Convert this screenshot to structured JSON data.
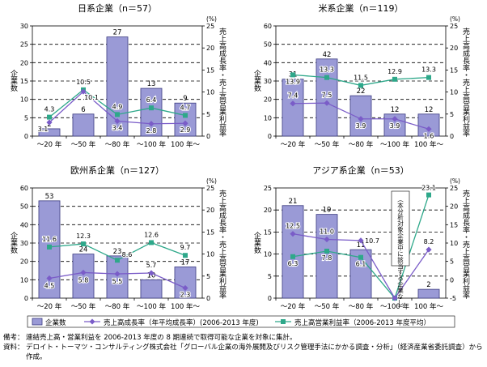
{
  "legend": {
    "companies": "企業数",
    "sales_growth": "売上高成長率（年平均成長率）(2006-2013 年度)",
    "op_margin": "売上高営業利益率（2006-2013 年度平均）"
  },
  "footnotes": {
    "note_key": "備考：",
    "note_text": "連結売上高・営業利益を 2006-2013 年度の 8 期連続で取得可能な企業を対象に集計。",
    "source_key": "資料：",
    "source_text": "デロイト・トーマツ・コンサルティング株式会社「グローバル企業の海外展開及びリスク管理手法にかかる調査・分析」（経済産業省委託調査）から",
    "source_text2": "作成。"
  },
  "colors": {
    "bar": "#9a9ad6",
    "bar_stroke": "#3a3a80",
    "growth": "#7a5cc8",
    "margin": "#2ea88a"
  },
  "chart_data": [
    {
      "type": "bar",
      "title": "日系企業（n＝57）",
      "categories": [
        "～20 年",
        "～50 年",
        "～80 年",
        "～100 年",
        "100 年～"
      ],
      "ylabel_left": "企業数",
      "ylabel_right": "売上高成長率・売上高営業利益率",
      "right_unit": "(%)",
      "ylim_left": [
        0,
        30
      ],
      "left_ticks": [
        0,
        5,
        10,
        15,
        20,
        25,
        30
      ],
      "ylim_right": [
        0,
        25
      ],
      "right_ticks": [
        0,
        5,
        10,
        15,
        20,
        25
      ],
      "grid": true,
      "series": [
        {
          "name": "企業数",
          "type": "bar",
          "axis": "left",
          "values": [
            2,
            6,
            27,
            13,
            9
          ]
        },
        {
          "name": "売上高成長率（年平均成長率）(2006-2013 年度)",
          "type": "line",
          "axis": "right",
          "values": [
            3.1,
            10.1,
            3.4,
            2.8,
            2.9
          ]
        },
        {
          "name": "売上高営業利益率（2006-2013 年度平均）",
          "type": "line",
          "axis": "right",
          "values": [
            4.3,
            10.5,
            4.9,
            6.4,
            4.7
          ]
        }
      ],
      "labels": {
        "bars": [
          "2",
          "6",
          "27",
          "13",
          "9"
        ],
        "growth": [
          "3.1",
          "10.1",
          "3.4",
          "2.8",
          "2.9"
        ],
        "margin": [
          "4.3",
          "10.5",
          "4.9",
          "6.4",
          "4.7"
        ]
      }
    },
    {
      "type": "bar",
      "title": "米系企業（n＝119）",
      "categories": [
        "～20 年",
        "～50 年",
        "～80 年",
        "～100 年",
        "100 年～"
      ],
      "ylabel_left": "企業数",
      "ylabel_right": "売上高成長率・売上高営業利益率",
      "right_unit": "(%)",
      "ylim_left": [
        0,
        60
      ],
      "left_ticks": [
        0,
        10,
        20,
        30,
        40,
        50,
        60
      ],
      "ylim_right": [
        0,
        25
      ],
      "right_ticks": [
        0,
        5,
        10,
        15,
        20,
        25
      ],
      "grid": true,
      "series": [
        {
          "name": "企業数",
          "type": "bar",
          "axis": "left",
          "values": [
            31,
            42,
            22,
            12,
            12
          ]
        },
        {
          "name": "売上高成長率（年平均成長率）(2006-2013 年度)",
          "type": "line",
          "axis": "right",
          "values": [
            7.4,
            7.5,
            3.9,
            3.9,
            1.6
          ]
        },
        {
          "name": "売上高営業利益率（2006-2013 年度平均）",
          "type": "line",
          "axis": "right",
          "values": [
            13.9,
            13.3,
            11.5,
            12.9,
            13.3
          ]
        }
      ],
      "labels": {
        "bars": [
          "31",
          "42",
          "22",
          "12",
          "12"
        ],
        "growth": [
          "7.4",
          "7.5",
          "3.9",
          "3.9",
          "1.6"
        ],
        "margin": [
          "13.9",
          "13.3",
          "11.5",
          "12.9",
          "13.3"
        ]
      }
    },
    {
      "type": "bar",
      "title": "欧州系企業（n＝127）",
      "categories": [
        "～20 年",
        "～50 年",
        "～80 年",
        "～100 年",
        "100 年～"
      ],
      "ylabel_left": "企業数",
      "ylabel_right": "売上高成長率・売上高営業利益率",
      "right_unit": "(%)",
      "ylim_left": [
        0,
        60
      ],
      "left_ticks": [
        0,
        10,
        20,
        30,
        40,
        50,
        60
      ],
      "ylim_right": [
        0,
        25
      ],
      "right_ticks": [
        0,
        5,
        10,
        15,
        20,
        25
      ],
      "grid": true,
      "series": [
        {
          "name": "企業数",
          "type": "bar",
          "axis": "left",
          "values": [
            53,
            24,
            23,
            10,
            17
          ]
        },
        {
          "name": "売上高成長率（年平均成長率）(2006-2013 年度)",
          "type": "line",
          "axis": "right",
          "values": [
            4.5,
            5.8,
            5.5,
            5.7,
            2.3
          ]
        },
        {
          "name": "売上高営業利益率（2006-2013 年度平均）",
          "type": "line",
          "axis": "right",
          "values": [
            11.6,
            12.3,
            8.6,
            12.6,
            9.7
          ]
        }
      ],
      "labels": {
        "bars": [
          "53",
          "24",
          "23",
          "10",
          "17"
        ],
        "growth": [
          "4.5",
          "5.8",
          "5.5",
          "5.7",
          "2.3"
        ],
        "margin": [
          "11.6",
          "12.3",
          "8.6",
          "12.6",
          "9.7"
        ]
      }
    },
    {
      "type": "bar",
      "title": "アジア系企業（n＝53）",
      "categories": [
        "～20 年",
        "～50 年",
        "～80 年",
        "～100 年",
        "100 年～"
      ],
      "ylabel_left": "企業数",
      "ylabel_right": "売上高成長率・売上高営業利益率",
      "right_unit": "(%)",
      "ylim_left": [
        0,
        25
      ],
      "left_ticks": [
        0,
        5,
        10,
        15,
        20,
        25
      ],
      "ylim_right": [
        -5,
        25
      ],
      "right_ticks": [
        -5,
        0,
        5,
        10,
        15,
        20,
        25
      ],
      "grid": true,
      "annotation": "（本分析対象企業中に該当する企業なし）",
      "series": [
        {
          "name": "企業数",
          "type": "bar",
          "axis": "left",
          "values": [
            21,
            19,
            11,
            0,
            2
          ]
        },
        {
          "name": "売上高成長率（年平均成長率）(2006-2013 年度)",
          "type": "line",
          "axis": "right",
          "values": [
            12.5,
            11.0,
            10.7,
            -5,
            8.2
          ]
        },
        {
          "name": "売上高営業利益率（2006-2013 年度平均）",
          "type": "line",
          "axis": "right",
          "values": [
            6.3,
            7.8,
            6.1,
            -5,
            23.1
          ]
        }
      ],
      "labels": {
        "bars": [
          "21",
          "19",
          "11",
          "",
          "2"
        ],
        "growth": [
          "12.5",
          "11.0",
          "10.7",
          "",
          "8.2"
        ],
        "margin": [
          "6.3",
          "7.8",
          "6.1",
          "",
          "23.1"
        ]
      }
    }
  ]
}
